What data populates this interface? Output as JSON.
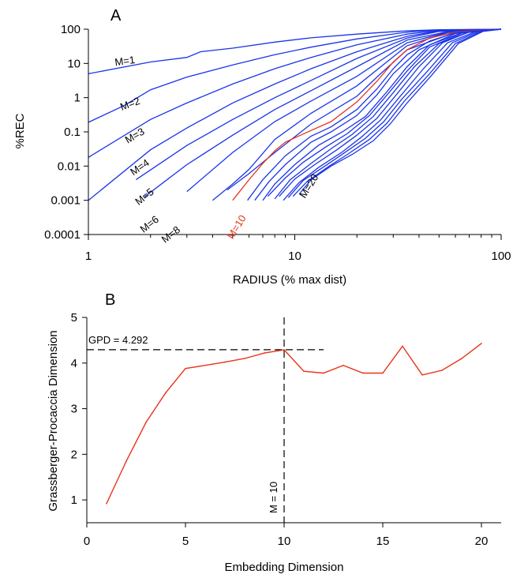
{
  "chart_data": [
    {
      "type": "line",
      "panel_label": "A",
      "xlabel": "RADIUS (% max dist)",
      "ylabel": "%REC",
      "xscale": "log",
      "yscale": "log",
      "xlim": [
        1,
        100
      ],
      "ylim": [
        0.0001,
        100
      ],
      "x_ticks": [
        {
          "value": 1,
          "label": "1"
        },
        {
          "value": 10,
          "label": "10"
        },
        {
          "value": 100,
          "label": "100"
        }
      ],
      "y_ticks": [
        {
          "value": 100,
          "label": "100"
        },
        {
          "value": 10,
          "label": "10"
        },
        {
          "value": 1,
          "label": "1"
        },
        {
          "value": 0.1,
          "label": "0.1"
        },
        {
          "value": 0.01,
          "label": "0.01"
        },
        {
          "value": 0.001,
          "label": "0.001"
        },
        {
          "value": 0.0001,
          "label": "0.0001"
        }
      ],
      "colors": {
        "normal": "#1a35e8",
        "highlight": "#e8341a"
      },
      "highlight_series": 10,
      "series_labels": [
        {
          "m": 1,
          "text": "M=1"
        },
        {
          "m": 2,
          "text": "M=2"
        },
        {
          "m": 3,
          "text": "M=3"
        },
        {
          "m": 4,
          "text": "M=4"
        },
        {
          "m": 5,
          "text": "M=5"
        },
        {
          "m": 6,
          "text": "M=6"
        },
        {
          "m": 8,
          "text": "M=8"
        },
        {
          "m": 10,
          "text": "M=10"
        },
        {
          "m": 20,
          "text": "M=20"
        }
      ],
      "series": [
        {
          "m": 1,
          "points": [
            [
              1,
              5
            ],
            [
              2,
              11
            ],
            [
              3,
              15
            ],
            [
              3.5,
              22
            ],
            [
              5,
              28
            ],
            [
              8,
              42
            ],
            [
              12,
              56
            ],
            [
              20,
              72
            ],
            [
              35,
              90
            ],
            [
              50,
              97
            ],
            [
              100,
              100
            ]
          ]
        },
        {
          "m": 2,
          "points": [
            [
              1,
              0.19
            ],
            [
              1.5,
              0.6
            ],
            [
              2,
              1.7
            ],
            [
              3,
              4
            ],
            [
              5,
              9
            ],
            [
              8,
              18
            ],
            [
              12,
              30
            ],
            [
              20,
              52
            ],
            [
              35,
              82
            ],
            [
              50,
              95
            ],
            [
              100,
              100
            ]
          ]
        },
        {
          "m": 3,
          "points": [
            [
              1,
              0.018
            ],
            [
              2,
              0.23
            ],
            [
              3,
              0.7
            ],
            [
              5,
              2.5
            ],
            [
              8,
              7
            ],
            [
              12,
              15
            ],
            [
              20,
              35
            ],
            [
              35,
              72
            ],
            [
              50,
              92
            ],
            [
              100,
              100
            ]
          ]
        },
        {
          "m": 4,
          "points": [
            [
              1,
              0.001
            ],
            [
              2,
              0.03
            ],
            [
              3,
              0.13
            ],
            [
              5,
              0.7
            ],
            [
              8,
              2.5
            ],
            [
              12,
              7
            ],
            [
              20,
              22
            ],
            [
              35,
              62
            ],
            [
              50,
              89
            ],
            [
              100,
              100
            ]
          ]
        },
        {
          "m": 5,
          "points": [
            [
              1.7,
              0.004
            ],
            [
              3,
              0.04
            ],
            [
              5,
              0.23
            ],
            [
              8,
              1
            ],
            [
              12,
              3.2
            ],
            [
              20,
              14
            ],
            [
              35,
              55
            ],
            [
              50,
              86
            ],
            [
              100,
              100
            ]
          ]
        },
        {
          "m": 6,
          "points": [
            [
              1.85,
              0.0012
            ],
            [
              3,
              0.011
            ],
            [
              5,
              0.08
            ],
            [
              8,
              0.45
            ],
            [
              12,
              1.6
            ],
            [
              20,
              8
            ],
            [
              35,
              48
            ],
            [
              55,
              85
            ],
            [
              100,
              100
            ]
          ]
        },
        {
          "m": 7,
          "points": [
            [
              3,
              0.0018
            ],
            [
              5,
              0.025
            ],
            [
              8,
              0.2
            ],
            [
              12,
              0.8
            ],
            [
              20,
              4.2
            ],
            [
              35,
              40
            ],
            [
              55,
              82
            ],
            [
              100,
              100
            ]
          ]
        },
        {
          "m": 8,
          "points": [
            [
              4,
              0.001
            ],
            [
              5,
              0.003
            ],
            [
              6,
              0.008
            ],
            [
              8,
              0.06
            ],
            [
              12,
              0.35
            ],
            [
              20,
              2.2
            ],
            [
              35,
              33
            ],
            [
              55,
              80
            ],
            [
              100,
              100
            ]
          ]
        },
        {
          "m": 9,
          "points": [
            [
              4.7,
              0.002
            ],
            [
              6,
              0.006
            ],
            [
              8,
              0.025
            ],
            [
              12,
              0.17
            ],
            [
              20,
              1.1
            ],
            [
              25,
              4
            ],
            [
              35,
              25
            ],
            [
              60,
              80
            ],
            [
              100,
              100
            ]
          ]
        },
        {
          "m": 10,
          "points": [
            [
              5,
              0.001
            ],
            [
              6,
              0.004
            ],
            [
              7,
              0.012
            ],
            [
              8,
              0.028
            ],
            [
              9,
              0.05
            ],
            [
              12,
              0.11
            ],
            [
              15,
              0.2
            ],
            [
              20,
              0.75
            ],
            [
              25,
              3
            ],
            [
              30,
              11
            ],
            [
              35,
              25
            ],
            [
              45,
              55
            ],
            [
              60,
              82
            ],
            [
              100,
              100
            ]
          ]
        },
        {
          "m": 11,
          "points": [
            [
              5.9,
              0.001
            ],
            [
              7,
              0.004
            ],
            [
              9,
              0.02
            ],
            [
              12,
              0.075
            ],
            [
              15,
              0.14
            ],
            [
              20,
              0.45
            ],
            [
              25,
              1.8
            ],
            [
              30,
              7
            ],
            [
              35,
              18
            ],
            [
              45,
              45
            ],
            [
              60,
              78
            ],
            [
              100,
              100
            ]
          ]
        },
        {
          "m": 12,
          "points": [
            [
              6.4,
              0.001
            ],
            [
              7.5,
              0.0035
            ],
            [
              9,
              0.011
            ],
            [
              12,
              0.05
            ],
            [
              15,
              0.1
            ],
            [
              20,
              0.3
            ],
            [
              25,
              1.2
            ],
            [
              30,
              5
            ],
            [
              40,
              25
            ],
            [
              60,
              75
            ],
            [
              100,
              100
            ]
          ]
        },
        {
          "m": 13,
          "points": [
            [
              7,
              0.001
            ],
            [
              8,
              0.003
            ],
            [
              10,
              0.011
            ],
            [
              13,
              0.04
            ],
            [
              17,
              0.1
            ],
            [
              22,
              0.28
            ],
            [
              28,
              1.5
            ],
            [
              35,
              8
            ],
            [
              45,
              35
            ],
            [
              65,
              80
            ],
            [
              100,
              100
            ]
          ]
        },
        {
          "m": 14,
          "points": [
            [
              7.4,
              0.0013
            ],
            [
              9,
              0.0045
            ],
            [
              11,
              0.013
            ],
            [
              14,
              0.035
            ],
            [
              18,
              0.09
            ],
            [
              23,
              0.3
            ],
            [
              28,
              1.2
            ],
            [
              35,
              6
            ],
            [
              45,
              30
            ],
            [
              65,
              78
            ],
            [
              100,
              100
            ]
          ]
        },
        {
          "m": 15,
          "points": [
            [
              8,
              0.0011
            ],
            [
              9.5,
              0.004
            ],
            [
              12,
              0.012
            ],
            [
              15,
              0.032
            ],
            [
              19,
              0.085
            ],
            [
              24,
              0.28
            ],
            [
              30,
              1.4
            ],
            [
              38,
              8
            ],
            [
              50,
              38
            ],
            [
              70,
              84
            ],
            [
              100,
              100
            ]
          ]
        },
        {
          "m": 16,
          "points": [
            [
              8.4,
              0.0013
            ],
            [
              10,
              0.0042
            ],
            [
              12.5,
              0.011
            ],
            [
              16,
              0.03
            ],
            [
              20,
              0.08
            ],
            [
              25,
              0.25
            ],
            [
              31,
              1.2
            ],
            [
              40,
              8
            ],
            [
              52,
              40
            ],
            [
              70,
              83
            ],
            [
              100,
              100
            ]
          ]
        },
        {
          "m": 17,
          "points": [
            [
              8.8,
              0.001
            ],
            [
              10.5,
              0.0033
            ],
            [
              13,
              0.009
            ],
            [
              17,
              0.026
            ],
            [
              21,
              0.07
            ],
            [
              26,
              0.22
            ],
            [
              32,
              1
            ],
            [
              42,
              7
            ],
            [
              55,
              40
            ],
            [
              75,
              85
            ],
            [
              100,
              100
            ]
          ]
        },
        {
          "m": 18,
          "points": [
            [
              9.3,
              0.0012
            ],
            [
              11,
              0.0038
            ],
            [
              14,
              0.01
            ],
            [
              17.5,
              0.025
            ],
            [
              22,
              0.065
            ],
            [
              27,
              0.2
            ],
            [
              33,
              0.9
            ],
            [
              44,
              6
            ],
            [
              58,
              40
            ],
            [
              78,
              86
            ],
            [
              100,
              100
            ]
          ]
        },
        {
          "m": 19,
          "points": [
            [
              9.8,
              0.0013
            ],
            [
              11.5,
              0.0036
            ],
            [
              14.5,
              0.0095
            ],
            [
              18,
              0.022
            ],
            [
              23,
              0.06
            ],
            [
              28,
              0.18
            ],
            [
              34,
              0.8
            ],
            [
              45,
              5
            ],
            [
              60,
              38
            ],
            [
              80,
              86
            ],
            [
              100,
              100
            ]
          ]
        },
        {
          "m": 20,
          "points": [
            [
              10.5,
              0.0015
            ],
            [
              12,
              0.004
            ],
            [
              15,
              0.01
            ],
            [
              19,
              0.022
            ],
            [
              24,
              0.055
            ],
            [
              29,
              0.17
            ],
            [
              35,
              0.7
            ],
            [
              46,
              4.5
            ],
            [
              62,
              38
            ],
            [
              82,
              87
            ],
            [
              100,
              100
            ]
          ]
        }
      ]
    },
    {
      "type": "line",
      "panel_label": "B",
      "xlabel": "Embedding Dimension",
      "ylabel": "Grassberger-Procaccia Dimension",
      "xlim": [
        0,
        21
      ],
      "ylim": [
        0.5,
        5
      ],
      "x_ticks": [
        {
          "value": 0,
          "label": "0"
        },
        {
          "value": 5,
          "label": "5"
        },
        {
          "value": 10,
          "label": "10"
        },
        {
          "value": 15,
          "label": "15"
        },
        {
          "value": 20,
          "label": "20"
        }
      ],
      "y_ticks": [
        {
          "value": 1,
          "label": "1"
        },
        {
          "value": 2,
          "label": "2"
        },
        {
          "value": 3,
          "label": "3"
        },
        {
          "value": 4,
          "label": "4"
        },
        {
          "value": 5,
          "label": "5"
        }
      ],
      "color": "#e8341a",
      "x": [
        1,
        2,
        3,
        4,
        5,
        6,
        7,
        8,
        9,
        10,
        11,
        12,
        13,
        14,
        15,
        16,
        17,
        18,
        19,
        20
      ],
      "y": [
        0.92,
        1.85,
        2.7,
        3.35,
        3.88,
        3.95,
        4.02,
        4.1,
        4.22,
        4.29,
        3.82,
        3.78,
        3.95,
        3.78,
        3.78,
        4.37,
        3.74,
        3.84,
        4.1,
        4.43
      ],
      "reference_lines": {
        "horizontal": {
          "value": 4.292,
          "x_range": [
            0,
            12
          ],
          "label": "GPD = 4.292"
        },
        "vertical": {
          "value": 10,
          "label": "M = 10"
        }
      }
    }
  ]
}
